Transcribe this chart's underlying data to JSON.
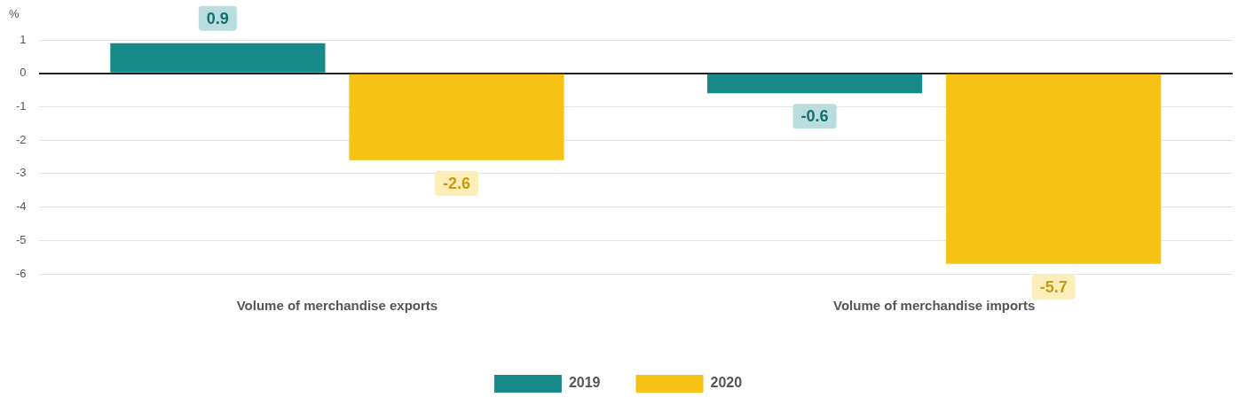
{
  "chart_data": {
    "type": "bar",
    "ylabel": "%",
    "categories": [
      "Volume of merchandise exports",
      "Volume of merchandise imports"
    ],
    "series": [
      {
        "name": "2019",
        "color": "#178a8a",
        "values": [
          0.9,
          -0.6
        ]
      },
      {
        "name": "2020",
        "color": "#f6c315",
        "values": [
          -2.6,
          -5.7
        ]
      }
    ],
    "ylim": [
      -6,
      1
    ],
    "yticks": [
      -6,
      -5,
      -4,
      -3,
      -2,
      -1,
      0,
      1
    ],
    "grid": "y",
    "legend": "bottom",
    "data_labels": true
  }
}
